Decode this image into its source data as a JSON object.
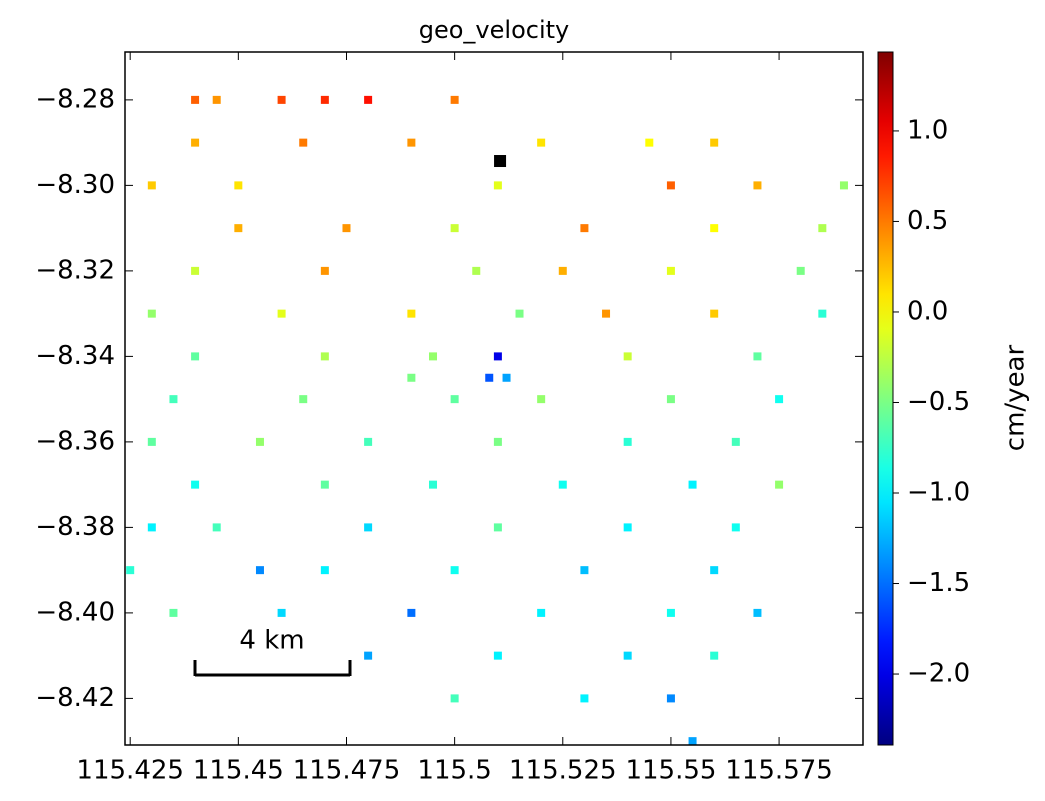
{
  "chart_data": {
    "type": "scatter",
    "title": "geo_velocity",
    "colorbar_label": "cm/year",
    "colormap": "jet",
    "annotation": "4 km",
    "xlim": [
      115.4238,
      115.5944
    ],
    "ylim": [
      -8.4309,
      -8.2688
    ],
    "clim": [
      -2.392,
      1.436
    ],
    "xticks": [
      115.425,
      115.45,
      115.475,
      115.5,
      115.525,
      115.55,
      115.575
    ],
    "yticks": [
      {
        "value": -8.28,
        "label": "−8.28"
      },
      {
        "value": -8.3,
        "label": "−8.30"
      },
      {
        "value": -8.32,
        "label": "−8.32"
      },
      {
        "value": -8.34,
        "label": "−8.34"
      },
      {
        "value": -8.36,
        "label": "−8.36"
      },
      {
        "value": -8.38,
        "label": "−8.38"
      },
      {
        "value": -8.4,
        "label": "−8.40"
      },
      {
        "value": -8.42,
        "label": "−8.42"
      }
    ],
    "cticks": [
      {
        "value": 1,
        "label": "1.0"
      },
      0.5,
      {
        "value": 0,
        "label": "0.0"
      },
      {
        "value": -0.5,
        "label": "−0.5"
      },
      {
        "value": -1,
        "label": "−1.0"
      },
      {
        "value": -1.5,
        "label": "−1.5"
      },
      {
        "value": -2,
        "label": "−2.0"
      }
    ],
    "reference_point": {
      "x": 115.5105,
      "y": -8.2943
    },
    "x": [
      115.44,
      115.46,
      115.48,
      115.5,
      115.47,
      115.445,
      115.44,
      115.465,
      115.49,
      115.52,
      115.545,
      115.56,
      115.43,
      115.45,
      115.51,
      115.55,
      115.57,
      115.59,
      115.45,
      115.475,
      115.5,
      115.53,
      115.56,
      115.585,
      115.44,
      115.47,
      115.505,
      115.525,
      115.55,
      115.58,
      115.43,
      115.46,
      115.49,
      115.515,
      115.535,
      115.56,
      115.585,
      115.44,
      115.47,
      115.495,
      115.51,
      115.54,
      115.57,
      115.49,
      115.508,
      115.512,
      115.435,
      115.465,
      115.5,
      115.52,
      115.55,
      115.575,
      115.43,
      115.455,
      115.48,
      115.51,
      115.54,
      115.565,
      115.44,
      115.47,
      115.495,
      115.525,
      115.555,
      115.575,
      115.43,
      115.445,
      115.48,
      115.51,
      115.54,
      115.565,
      115.425,
      115.455,
      115.47,
      115.5,
      115.53,
      115.56,
      115.435,
      115.46,
      115.49,
      115.52,
      115.55,
      115.57,
      115.48,
      115.51,
      115.54,
      115.56,
      115.5,
      115.53,
      115.55,
      115.555
    ],
    "y": [
      -8.28,
      -8.28,
      -8.28,
      -8.28,
      -8.28,
      -8.28,
      -8.29,
      -8.29,
      -8.29,
      -8.29,
      -8.29,
      -8.29,
      -8.3,
      -8.3,
      -8.3,
      -8.3,
      -8.3,
      -8.3,
      -8.31,
      -8.31,
      -8.31,
      -8.31,
      -8.31,
      -8.31,
      -8.32,
      -8.32,
      -8.32,
      -8.32,
      -8.32,
      -8.32,
      -8.33,
      -8.33,
      -8.33,
      -8.33,
      -8.33,
      -8.33,
      -8.33,
      -8.34,
      -8.34,
      -8.34,
      -8.34,
      -8.34,
      -8.34,
      -8.345,
      -8.345,
      -8.345,
      -8.35,
      -8.35,
      -8.35,
      -8.35,
      -8.35,
      -8.35,
      -8.36,
      -8.36,
      -8.36,
      -8.36,
      -8.36,
      -8.36,
      -8.37,
      -8.37,
      -8.37,
      -8.37,
      -8.37,
      -8.37,
      -8.38,
      -8.38,
      -8.38,
      -8.38,
      -8.38,
      -8.38,
      -8.39,
      -8.39,
      -8.39,
      -8.39,
      -8.39,
      -8.39,
      -8.4,
      -8.4,
      -8.4,
      -8.4,
      -8.4,
      -8.4,
      -8.41,
      -8.41,
      -8.41,
      -8.41,
      -8.42,
      -8.42,
      -8.42,
      -8.43
    ],
    "values": [
      0.6,
      0.7,
      0.9,
      0.5,
      0.8,
      0.4,
      0.3,
      0.5,
      0.4,
      0.1,
      0,
      0.2,
      0.2,
      0.1,
      -0.1,
      0.6,
      0.3,
      -0.4,
      0.3,
      0.4,
      -0.2,
      0.5,
      0,
      -0.3,
      -0.2,
      0.4,
      -0.3,
      0.3,
      -0.1,
      -0.5,
      -0.4,
      -0.1,
      0.1,
      -0.5,
      0.4,
      0.2,
      -0.8,
      -0.6,
      -0.3,
      -0.4,
      -2,
      -0.2,
      -0.6,
      -0.5,
      -1.6,
      -1.3,
      -0.7,
      -0.5,
      -0.6,
      -0.4,
      -0.5,
      -0.9,
      -0.6,
      -0.4,
      -0.7,
      -0.5,
      -0.8,
      -0.7,
      -0.9,
      -0.6,
      -0.8,
      -0.9,
      -1,
      -0.4,
      -1,
      -0.7,
      -1.1,
      -0.6,
      -1,
      -0.9,
      -0.8,
      -1.4,
      -1,
      -0.9,
      -1.2,
      -1.1,
      -0.6,
      -1.1,
      -1.5,
      -1,
      -0.9,
      -1.2,
      -1.3,
      -1,
      -1.1,
      -0.8,
      -0.7,
      -1,
      -1.4,
      -1.3
    ]
  }
}
